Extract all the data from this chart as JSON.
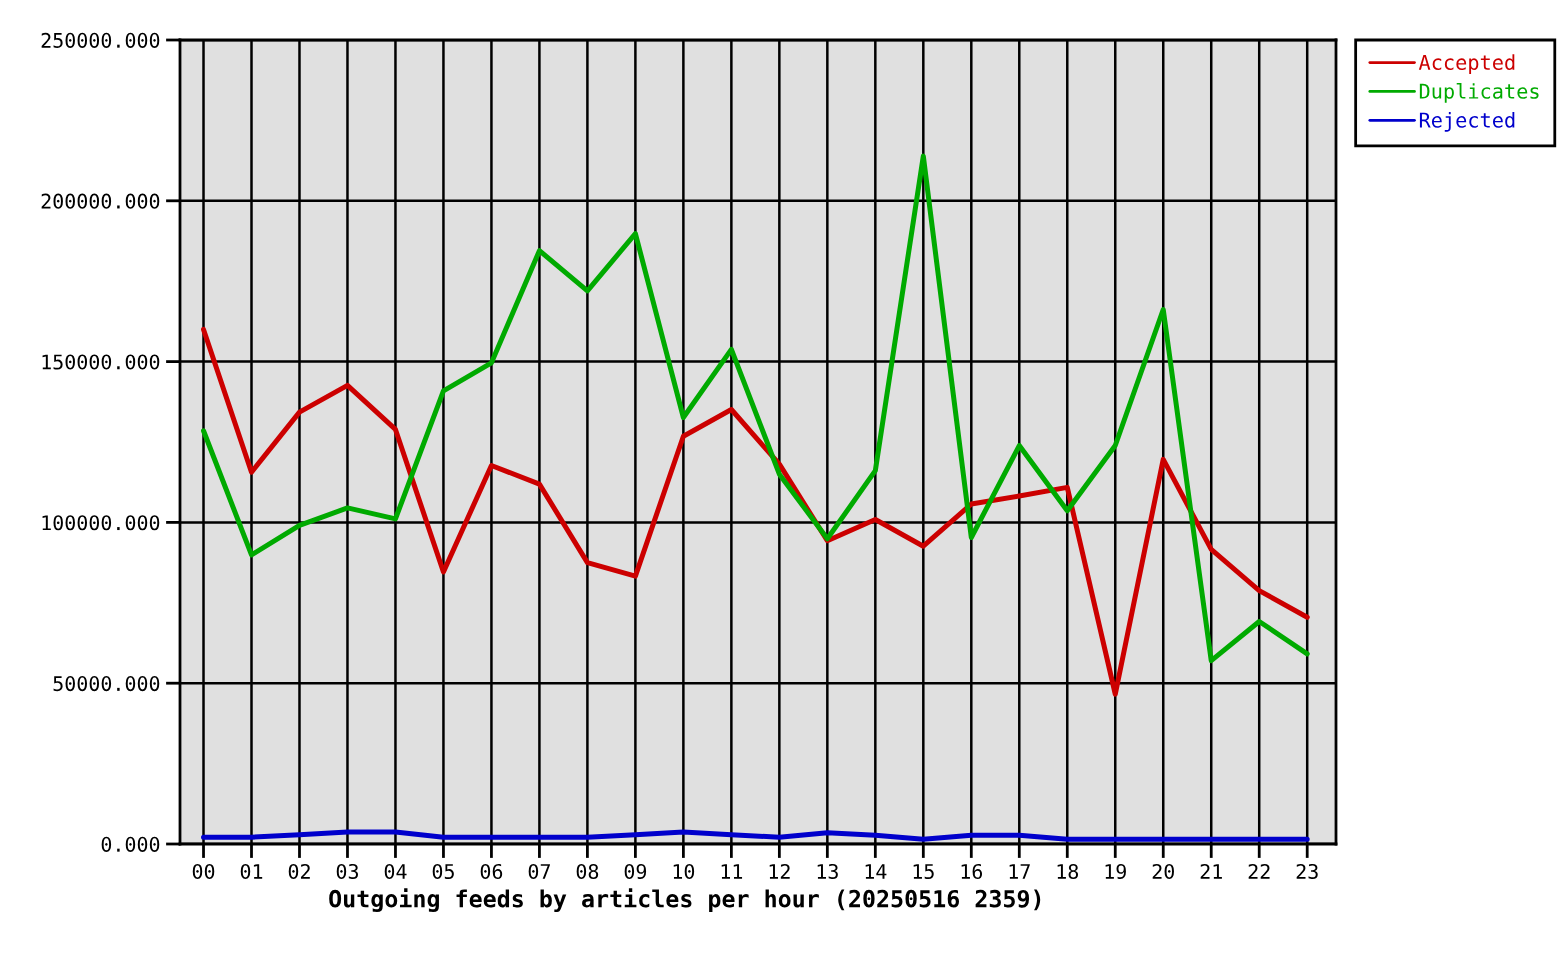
{
  "chart_data": {
    "type": "line",
    "xlabel": "Outgoing feeds by articles per hour (20250516 2359)",
    "categories": [
      "00",
      "01",
      "02",
      "03",
      "04",
      "05",
      "06",
      "07",
      "08",
      "09",
      "10",
      "11",
      "12",
      "13",
      "14",
      "15",
      "16",
      "17",
      "18",
      "19",
      "20",
      "21",
      "22",
      "23"
    ],
    "series": [
      {
        "name": "Accepted",
        "color": "#cc0000",
        "values": [
          160000,
          115600,
          134300,
          142600,
          128900,
          84600,
          117700,
          111900,
          87500,
          83300,
          126800,
          135100,
          118100,
          94300,
          100900,
          92600,
          105700,
          108200,
          110900,
          46600,
          119600,
          91600,
          78800,
          70500
        ]
      },
      {
        "name": "Duplicates",
        "color": "#00aa00",
        "values": [
          128500,
          89900,
          99100,
          104500,
          101100,
          140900,
          149600,
          184500,
          172000,
          189800,
          132600,
          153800,
          115000,
          94900,
          116100,
          213900,
          95300,
          123900,
          103600,
          123900,
          166200,
          57000,
          69200,
          59100
        ]
      },
      {
        "name": "Rejected",
        "color": "#0000cc",
        "values": [
          2100,
          2100,
          2900,
          3700,
          3700,
          2100,
          2100,
          2100,
          2100,
          2900,
          3700,
          2900,
          2100,
          3500,
          2700,
          1500,
          2700,
          2700,
          1500,
          1500,
          1500,
          1500,
          1500,
          1500
        ]
      }
    ],
    "ylim": [
      0,
      250000
    ],
    "yticks": [
      {
        "value": 0,
        "label": "0.000"
      },
      {
        "value": 50000,
        "label": "50000.000"
      },
      {
        "value": 100000,
        "label": "100000.000"
      },
      {
        "value": 150000,
        "label": "150000.000"
      },
      {
        "value": 200000,
        "label": "200000.000"
      },
      {
        "value": 250000,
        "label": "250000.000"
      }
    ],
    "grid": true,
    "legend": "top right",
    "line_style": "solid"
  }
}
